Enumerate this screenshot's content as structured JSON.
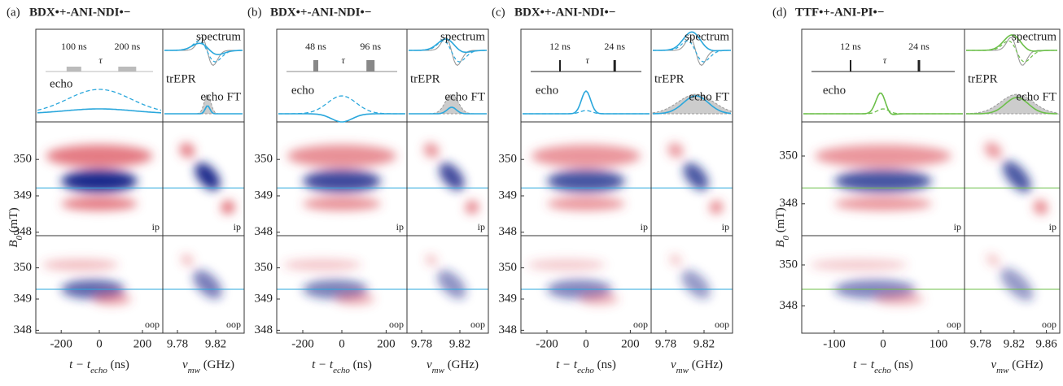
{
  "panels": [
    {
      "label": "(a)",
      "title": "BDX•+-ANI-NDI•−",
      "color": "#2aa7dc",
      "pulses": [
        "100 ns",
        "200 ns"
      ],
      "tau": "τ",
      "echo": "echo",
      "spectrum": "spectrum",
      "trepr": "trEPR",
      "echo_ft": "echo FT",
      "ip": "ip",
      "oop": "oop",
      "yticks_ip": [
        "350",
        "349",
        "348"
      ],
      "yticks_oop": [
        "350",
        "349",
        "348"
      ],
      "time_ticks": [
        "-200",
        "0",
        "200"
      ],
      "freq_ticks": [
        "9.78",
        "9.82"
      ]
    },
    {
      "label": "(b)",
      "title": "BDX•+-ANI-NDI•−",
      "color": "#2aa7dc",
      "pulses": [
        "48 ns",
        "96 ns"
      ],
      "tau": "τ",
      "echo": "echo",
      "spectrum": "spectrum",
      "trepr": "trEPR",
      "echo_ft": "echo FT",
      "ip": "ip",
      "oop": "oop",
      "yticks_ip": [
        "350",
        "349",
        "348"
      ],
      "yticks_oop": [
        "350",
        "349",
        "348"
      ],
      "time_ticks": [
        "-200",
        "0",
        "200"
      ],
      "freq_ticks": [
        "9.78",
        "9.82"
      ]
    },
    {
      "label": "(c)",
      "title": "BDX•+-ANI-NDI•−",
      "color": "#2aa7dc",
      "pulses": [
        "12 ns",
        "24 ns"
      ],
      "tau": "τ",
      "echo": "echo",
      "spectrum": "spectrum",
      "trepr": "trEPR",
      "echo_ft": "echo FT",
      "ip": "ip",
      "oop": "oop",
      "yticks_ip": [
        "350",
        "349",
        "348"
      ],
      "yticks_oop": [
        "350",
        "349",
        "348"
      ],
      "time_ticks": [
        "-200",
        "0",
        "200"
      ],
      "freq_ticks": [
        "9.78",
        "9.82"
      ]
    },
    {
      "label": "(d)",
      "title": "TTF•+-ANI-PI•−",
      "color": "#6cbf4a",
      "pulses": [
        "12 ns",
        "24 ns"
      ],
      "tau": "τ",
      "echo": "echo",
      "spectrum": "spectrum",
      "trepr": "trEPR",
      "echo_ft": "echo FT",
      "ip": "ip",
      "oop": "oop",
      "yticks_ip": [
        "350",
        "348"
      ],
      "yticks_oop": [
        "350",
        "348"
      ],
      "time_ticks": [
        "-100",
        "0",
        "100"
      ],
      "freq_ticks": [
        "9.78",
        "9.82",
        "9.86"
      ]
    }
  ],
  "y_label": {
    "main": "B",
    "sub": "0",
    "unit": " (mT)"
  },
  "x_label_time": {
    "main": "t − t",
    "sub": "echo",
    "unit": " (ns)"
  },
  "x_label_freq": {
    "main": "ν",
    "sub": "mw",
    "unit": " (GHz)"
  }
}
